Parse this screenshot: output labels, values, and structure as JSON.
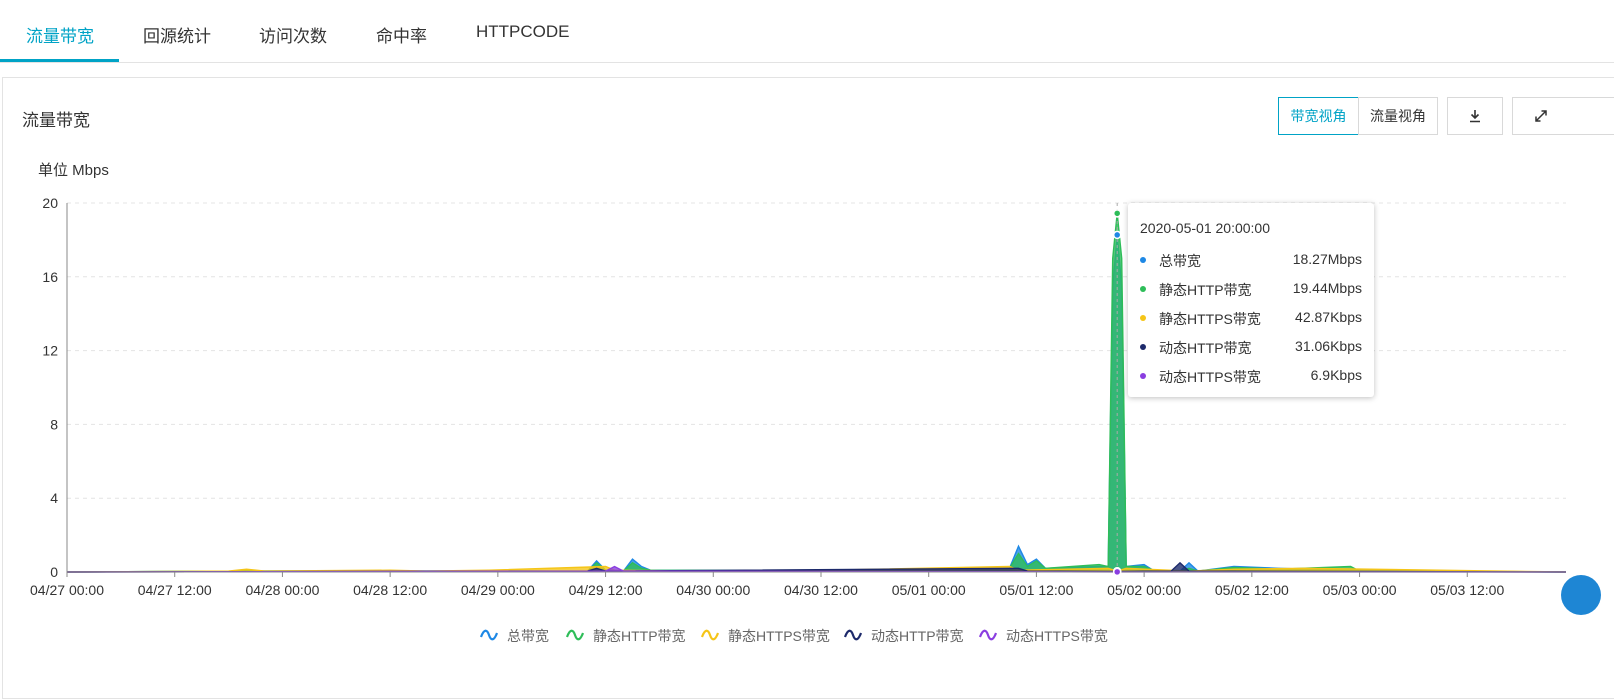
{
  "tabs": [
    "流量带宽",
    "回源统计",
    "访问次数",
    "命中率",
    "HTTPCODE"
  ],
  "panel": {
    "title": "流量带宽",
    "view_bandwidth": "带宽视角",
    "view_traffic": "流量视角"
  },
  "icons": {
    "download": "download-icon",
    "expand": "expand-icon"
  },
  "tooltip": {
    "time": "2020-05-01 20:00:00",
    "rows": [
      {
        "name": "总带宽",
        "value": "18.27Mbps",
        "color": "#1e88e5"
      },
      {
        "name": "静态HTTP带宽",
        "value": "19.44Mbps",
        "color": "#2ebd59"
      },
      {
        "name": "静态HTTPS带宽",
        "value": "42.87Kbps",
        "color": "#f5c518"
      },
      {
        "name": "动态HTTP带宽",
        "value": "31.06Kbps",
        "color": "#1d2a6b"
      },
      {
        "name": "动态HTTPS带宽",
        "value": "6.9Kbps",
        "color": "#8a3ee0"
      }
    ]
  },
  "chart_data": {
    "type": "area",
    "unit_label": "单位 Mbps",
    "ylabel": "",
    "xlabel": "",
    "ylim": [
      0,
      20
    ],
    "yticks": [
      0,
      4,
      8,
      12,
      16,
      20
    ],
    "xlim": [
      0,
      167
    ],
    "xticks": [
      {
        "x": 0,
        "label": "04/27 00:00"
      },
      {
        "x": 12,
        "label": "04/27 12:00"
      },
      {
        "x": 24,
        "label": "04/28 00:00"
      },
      {
        "x": 36,
        "label": "04/28 12:00"
      },
      {
        "x": 48,
        "label": "04/29 00:00"
      },
      {
        "x": 60,
        "label": "04/29 12:00"
      },
      {
        "x": 72,
        "label": "04/30 00:00"
      },
      {
        "x": 84,
        "label": "04/30 12:00"
      },
      {
        "x": 96,
        "label": "05/01 00:00"
      },
      {
        "x": 108,
        "label": "05/01 12:00"
      },
      {
        "x": 120,
        "label": "05/02 00:00"
      },
      {
        "x": 132,
        "label": "05/02 12:00"
      },
      {
        "x": 144,
        "label": "05/03 00:00"
      },
      {
        "x": 156,
        "label": "05/03 12:00"
      }
    ],
    "grid": true,
    "legend_position": "bottom",
    "series": [
      {
        "name": "总带宽",
        "color": "#1e88e5",
        "points": [
          [
            0,
            0
          ],
          [
            19,
            0.05
          ],
          [
            20,
            0.1
          ],
          [
            21,
            0.05
          ],
          [
            58,
            0.05
          ],
          [
            59,
            0.6
          ],
          [
            60,
            0.1
          ],
          [
            62,
            0.05
          ],
          [
            63,
            0.7
          ],
          [
            64,
            0.3
          ],
          [
            65,
            0.1
          ],
          [
            100,
            0.05
          ],
          [
            105,
            0.2
          ],
          [
            106,
            1.4
          ],
          [
            107,
            0.4
          ],
          [
            108,
            0.7
          ],
          [
            109,
            0.2
          ],
          [
            115,
            0.3
          ],
          [
            116,
            0.3
          ],
          [
            116.5,
            15.5
          ],
          [
            117,
            18.27
          ],
          [
            117.5,
            15.5
          ],
          [
            118,
            0.3
          ],
          [
            120,
            0.4
          ],
          [
            121,
            0.1
          ],
          [
            124,
            0.05
          ],
          [
            125,
            0.5
          ],
          [
            126,
            0.05
          ],
          [
            130,
            0.3
          ],
          [
            135,
            0.2
          ],
          [
            143,
            0.1
          ],
          [
            167,
            0
          ]
        ]
      },
      {
        "name": "静态HTTP带宽",
        "color": "#2ebd59",
        "points": [
          [
            0,
            0
          ],
          [
            19,
            0.05
          ],
          [
            20,
            0.1
          ],
          [
            21,
            0.05
          ],
          [
            58,
            0.05
          ],
          [
            59,
            0.5
          ],
          [
            60,
            0.1
          ],
          [
            62,
            0.05
          ],
          [
            63,
            0.5
          ],
          [
            64,
            0.2
          ],
          [
            65,
            0.1
          ],
          [
            100,
            0.05
          ],
          [
            105,
            0.2
          ],
          [
            106,
            1.0
          ],
          [
            107,
            0.3
          ],
          [
            108,
            0.6
          ],
          [
            109,
            0.2
          ],
          [
            115,
            0.4
          ],
          [
            116,
            0.3
          ],
          [
            116.5,
            17.0
          ],
          [
            117,
            19.44
          ],
          [
            117.5,
            17.0
          ],
          [
            118,
            0.3
          ],
          [
            120,
            0.3
          ],
          [
            121,
            0.1
          ],
          [
            124,
            0.05
          ],
          [
            125,
            0.2
          ],
          [
            126,
            0.05
          ],
          [
            130,
            0.25
          ],
          [
            135,
            0.15
          ],
          [
            143,
            0.3
          ],
          [
            144,
            0.05
          ],
          [
            167,
            0
          ]
        ]
      },
      {
        "name": "静态HTTPS带宽",
        "color": "#f5c518",
        "points": [
          [
            0,
            0
          ],
          [
            18,
            0.05
          ],
          [
            20,
            0.15
          ],
          [
            22,
            0.05
          ],
          [
            36,
            0.1
          ],
          [
            40,
            0.05
          ],
          [
            47,
            0.1
          ],
          [
            60,
            0.3
          ],
          [
            61,
            0.1
          ],
          [
            70,
            0.05
          ],
          [
            85,
            0.1
          ],
          [
            105,
            0.3
          ],
          [
            106,
            0.1
          ],
          [
            116,
            0.2
          ],
          [
            117,
            0.04287
          ],
          [
            118,
            0.2
          ],
          [
            125,
            0.05
          ],
          [
            130,
            0.15
          ],
          [
            138,
            0.2
          ],
          [
            167,
            0
          ]
        ]
      },
      {
        "name": "动态HTTP带宽",
        "color": "#1d2a6b",
        "points": [
          [
            0,
            0
          ],
          [
            58,
            0.05
          ],
          [
            59,
            0.2
          ],
          [
            60,
            0.05
          ],
          [
            106,
            0.2
          ],
          [
            107,
            0.05
          ],
          [
            117,
            0.03106
          ],
          [
            123,
            0.05
          ],
          [
            124,
            0.5
          ],
          [
            125,
            0.05
          ],
          [
            167,
            0
          ]
        ]
      },
      {
        "name": "动态HTTPS带宽",
        "color": "#8a3ee0",
        "points": [
          [
            0,
            0
          ],
          [
            60,
            0.05
          ],
          [
            61,
            0.3
          ],
          [
            62,
            0.05
          ],
          [
            117,
            0.0069
          ],
          [
            167,
            0
          ]
        ]
      }
    ],
    "hover_x": 117
  }
}
